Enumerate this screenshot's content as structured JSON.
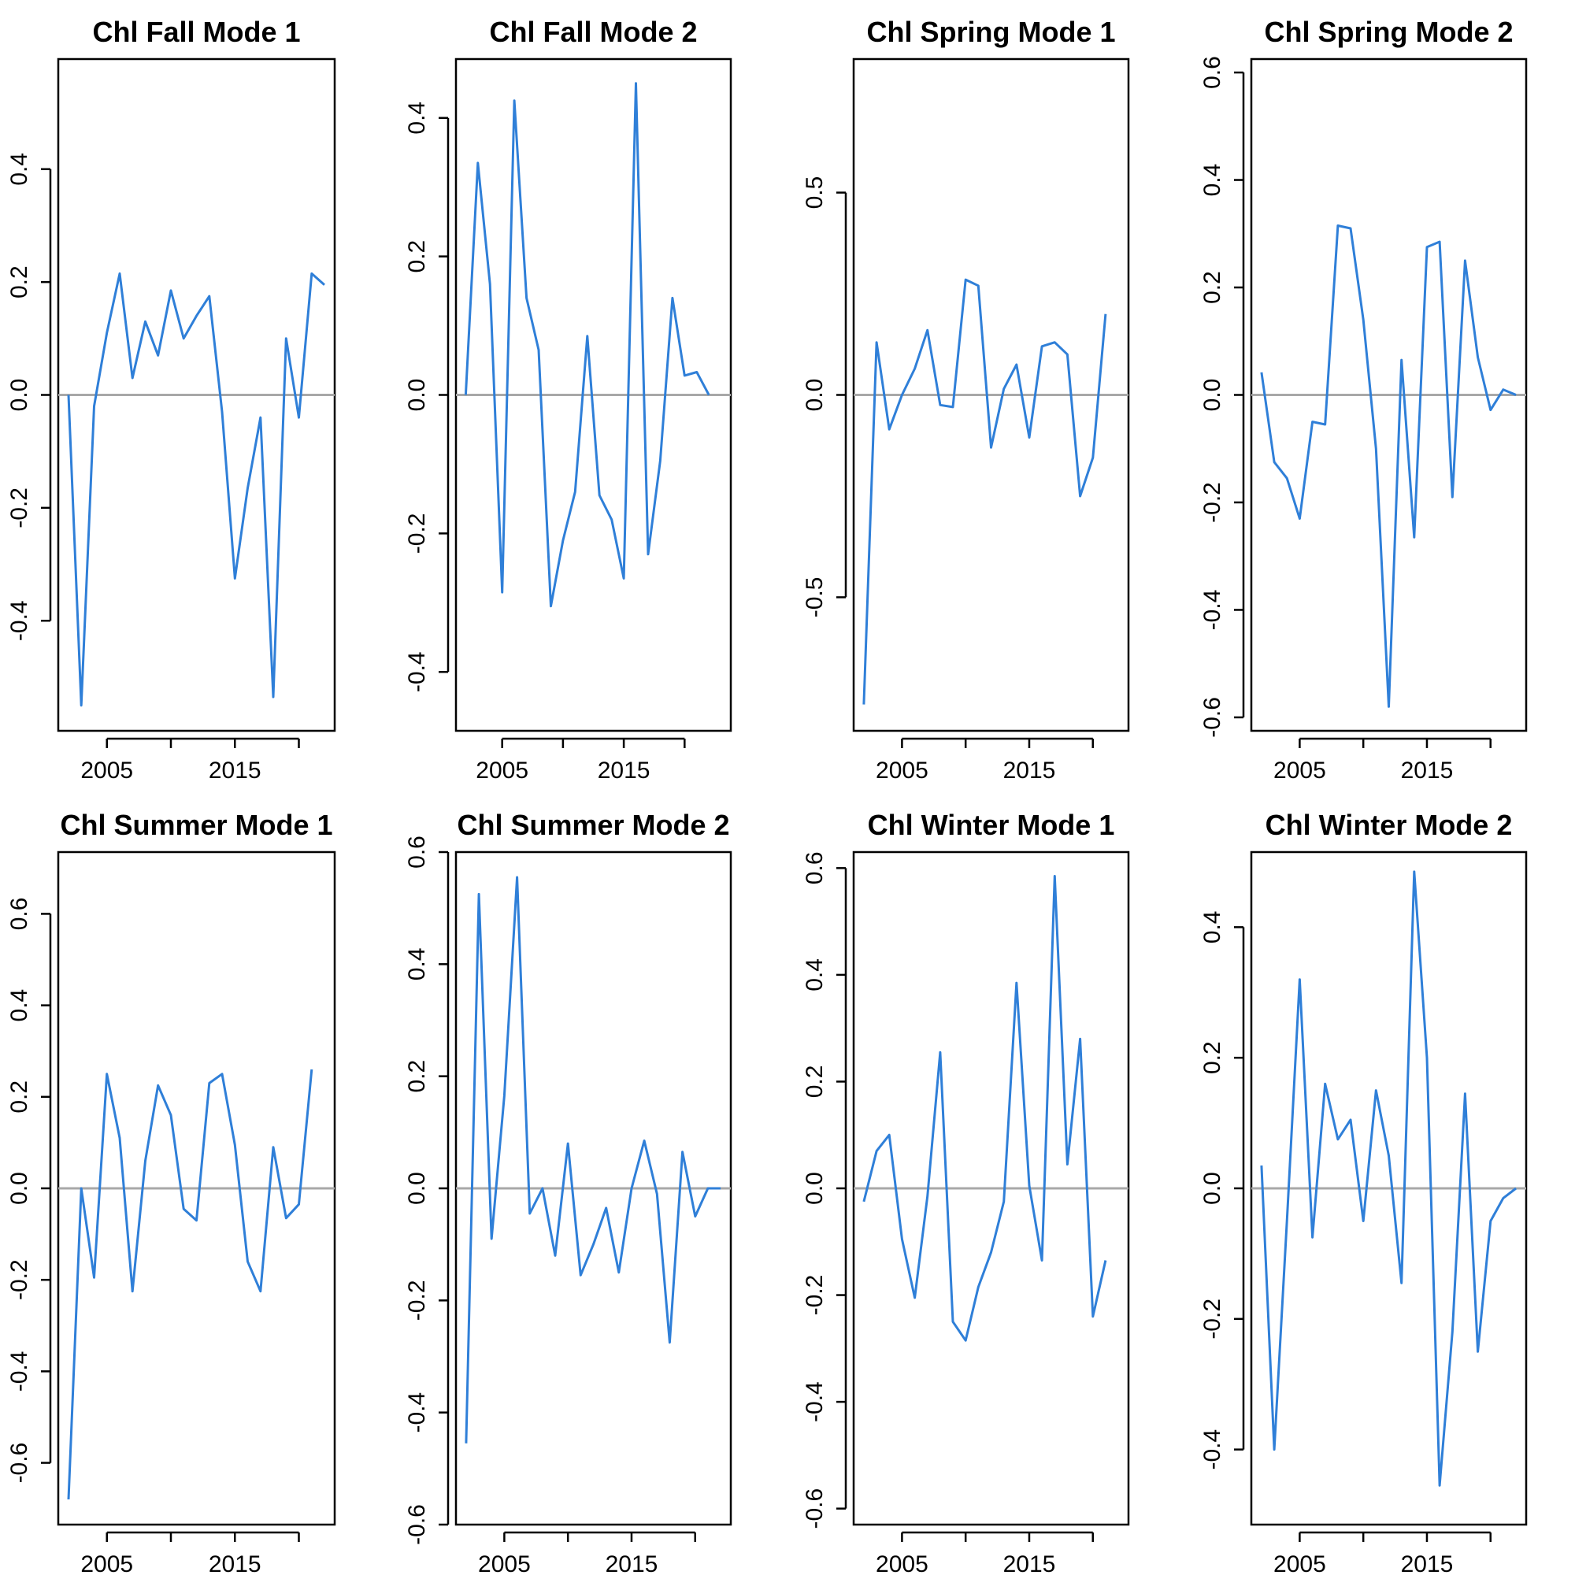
{
  "colors": {
    "series": "#2f7fd8",
    "zero_line": "#a8a8a8",
    "frame": "#000000"
  },
  "chart_data": [
    {
      "type": "line",
      "title": "Chl Fall Mode 1",
      "x": [
        2002,
        2003,
        2004,
        2005,
        2006,
        2007,
        2008,
        2009,
        2010,
        2011,
        2012,
        2013,
        2014,
        2015,
        2016,
        2017,
        2018,
        2019,
        2020,
        2021,
        2022
      ],
      "series": [
        {
          "values": [
            0.0,
            -0.55,
            -0.02,
            0.11,
            0.215,
            0.03,
            0.13,
            0.07,
            0.185,
            0.1,
            0.14,
            0.175,
            -0.03,
            -0.325,
            -0.165,
            -0.04,
            -0.535,
            0.1,
            -0.04,
            0.215,
            0.195
          ]
        }
      ],
      "xticks": [
        2005,
        2015
      ],
      "yticks": [
        -0.4,
        -0.2,
        0.0,
        0.2,
        0.4
      ],
      "ylim": [
        -0.595,
        0.595
      ],
      "xlim": [
        2001.2,
        2022.8
      ],
      "grid": false
    },
    {
      "type": "line",
      "title": "Chl Fall Mode 2",
      "x": [
        2002,
        2003,
        2004,
        2005,
        2006,
        2007,
        2008,
        2009,
        2010,
        2011,
        2012,
        2013,
        2014,
        2015,
        2016,
        2017,
        2018,
        2019,
        2020,
        2021,
        2022
      ],
      "series": [
        {
          "values": [
            0.0,
            0.335,
            0.16,
            -0.285,
            0.425,
            0.14,
            0.065,
            -0.305,
            -0.21,
            -0.14,
            0.085,
            -0.145,
            -0.18,
            -0.265,
            0.45,
            -0.23,
            -0.095,
            0.14,
            0.028,
            0.033,
            0.0
          ]
        }
      ],
      "xticks": [
        2005,
        2015
      ],
      "yticks": [
        -0.4,
        -0.2,
        0.0,
        0.2,
        0.4
      ],
      "ylim": [
        -0.485,
        0.485
      ],
      "xlim": [
        2001.2,
        2023.8
      ],
      "grid": false
    },
    {
      "type": "line",
      "title": "Chl Spring Mode 1",
      "x": [
        2002,
        2003,
        2004,
        2005,
        2006,
        2007,
        2008,
        2009,
        2010,
        2011,
        2012,
        2013,
        2014,
        2015,
        2016,
        2017,
        2018,
        2019,
        2020,
        2021
      ],
      "series": [
        {
          "values": [
            -0.765,
            0.13,
            -0.085,
            0.0,
            0.065,
            0.16,
            -0.025,
            -0.03,
            0.285,
            0.27,
            -0.13,
            0.015,
            0.075,
            -0.105,
            0.12,
            0.13,
            0.1,
            -0.25,
            -0.155,
            0.2
          ]
        }
      ],
      "xticks": [
        2005,
        2015
      ],
      "yticks": [
        -0.5,
        0.0,
        0.5
      ],
      "ylim": [
        -0.83,
        0.83
      ],
      "xlim": [
        2001.2,
        2022.8
      ],
      "grid": false
    },
    {
      "type": "line",
      "title": "Chl Spring Mode 2",
      "x": [
        2002,
        2003,
        2004,
        2005,
        2006,
        2007,
        2008,
        2009,
        2010,
        2011,
        2012,
        2013,
        2014,
        2015,
        2016,
        2017,
        2018,
        2019,
        2020,
        2021,
        2022
      ],
      "series": [
        {
          "values": [
            0.042,
            -0.125,
            -0.155,
            -0.23,
            -0.05,
            -0.055,
            0.315,
            0.31,
            0.14,
            -0.1,
            -0.58,
            0.065,
            -0.265,
            0.275,
            0.285,
            -0.19,
            0.25,
            0.07,
            -0.028,
            0.01,
            0.0
          ]
        }
      ],
      "xticks": [
        2005,
        2015
      ],
      "yticks": [
        -0.6,
        -0.4,
        -0.2,
        0.0,
        0.2,
        0.4,
        0.6
      ],
      "ylim": [
        -0.625,
        0.625
      ],
      "xlim": [
        2001.2,
        2022.8
      ],
      "grid": false
    },
    {
      "type": "line",
      "title": "Chl Summer Mode 1",
      "x": [
        2002,
        2003,
        2004,
        2005,
        2006,
        2007,
        2008,
        2009,
        2010,
        2011,
        2012,
        2013,
        2014,
        2015,
        2016,
        2017,
        2018,
        2019,
        2020,
        2021
      ],
      "series": [
        {
          "values": [
            -0.68,
            0.0,
            -0.195,
            0.25,
            0.11,
            -0.225,
            0.06,
            0.225,
            0.16,
            -0.045,
            -0.07,
            0.23,
            0.25,
            0.095,
            -0.16,
            -0.225,
            0.09,
            -0.065,
            -0.035,
            0.26
          ]
        }
      ],
      "xticks": [
        2005,
        2015
      ],
      "yticks": [
        -0.6,
        -0.4,
        -0.2,
        0.0,
        0.2,
        0.4,
        0.6
      ],
      "ylim": [
        -0.735,
        0.735
      ],
      "xlim": [
        2001.2,
        2022.8
      ],
      "grid": false
    },
    {
      "type": "line",
      "title": "Chl Summer Mode 2",
      "x": [
        2002,
        2003,
        2004,
        2005,
        2006,
        2007,
        2008,
        2009,
        2010,
        2011,
        2012,
        2013,
        2014,
        2015,
        2016,
        2017,
        2018,
        2019,
        2020,
        2021,
        2022
      ],
      "series": [
        {
          "values": [
            -0.455,
            0.525,
            -0.09,
            0.165,
            0.555,
            -0.045,
            0.0,
            -0.12,
            0.08,
            -0.155,
            -0.1,
            -0.035,
            -0.15,
            0.0,
            0.085,
            -0.01,
            -0.275,
            0.065,
            -0.05,
            0.0,
            0.0
          ]
        }
      ],
      "xticks": [
        2005,
        2015
      ],
      "yticks": [
        -0.6,
        -0.4,
        -0.2,
        0.0,
        0.2,
        0.4,
        0.6
      ],
      "ylim": [
        -0.6,
        0.6
      ],
      "xlim": [
        2001.2,
        2022.8
      ],
      "grid": false
    },
    {
      "type": "line",
      "title": "Chl Winter Mode 1",
      "x": [
        2002,
        2003,
        2004,
        2005,
        2006,
        2007,
        2008,
        2009,
        2010,
        2011,
        2012,
        2013,
        2014,
        2015,
        2016,
        2017,
        2018,
        2019,
        2020,
        2021
      ],
      "series": [
        {
          "values": [
            -0.025,
            0.07,
            0.1,
            -0.095,
            -0.205,
            -0.015,
            0.255,
            -0.25,
            -0.285,
            -0.185,
            -0.12,
            -0.025,
            0.385,
            0.005,
            -0.135,
            0.585,
            0.045,
            0.28,
            -0.24,
            -0.135
          ]
        }
      ],
      "xticks": [
        2005,
        2015
      ],
      "yticks": [
        -0.6,
        -0.4,
        -0.2,
        0.0,
        0.2,
        0.4,
        0.6
      ],
      "ylim": [
        -0.63,
        0.63
      ],
      "xlim": [
        2001.2,
        2022.8
      ],
      "grid": false
    },
    {
      "type": "line",
      "title": "Chl Winter Mode 2",
      "x": [
        2002,
        2003,
        2004,
        2005,
        2006,
        2007,
        2008,
        2009,
        2010,
        2011,
        2012,
        2013,
        2014,
        2015,
        2016,
        2017,
        2018,
        2019,
        2020,
        2021,
        2022
      ],
      "series": [
        {
          "values": [
            0.035,
            -0.4,
            -0.05,
            0.32,
            -0.075,
            0.16,
            0.075,
            0.105,
            -0.05,
            0.15,
            0.05,
            -0.145,
            0.485,
            0.2,
            -0.455,
            -0.22,
            0.145,
            -0.25,
            -0.05,
            -0.015,
            0.0
          ]
        }
      ],
      "xticks": [
        2005,
        2015
      ],
      "yticks": [
        -0.4,
        -0.2,
        0.0,
        0.2,
        0.4
      ],
      "ylim": [
        -0.515,
        0.515
      ],
      "xlim": [
        2001.2,
        2022.8
      ],
      "grid": false
    }
  ]
}
